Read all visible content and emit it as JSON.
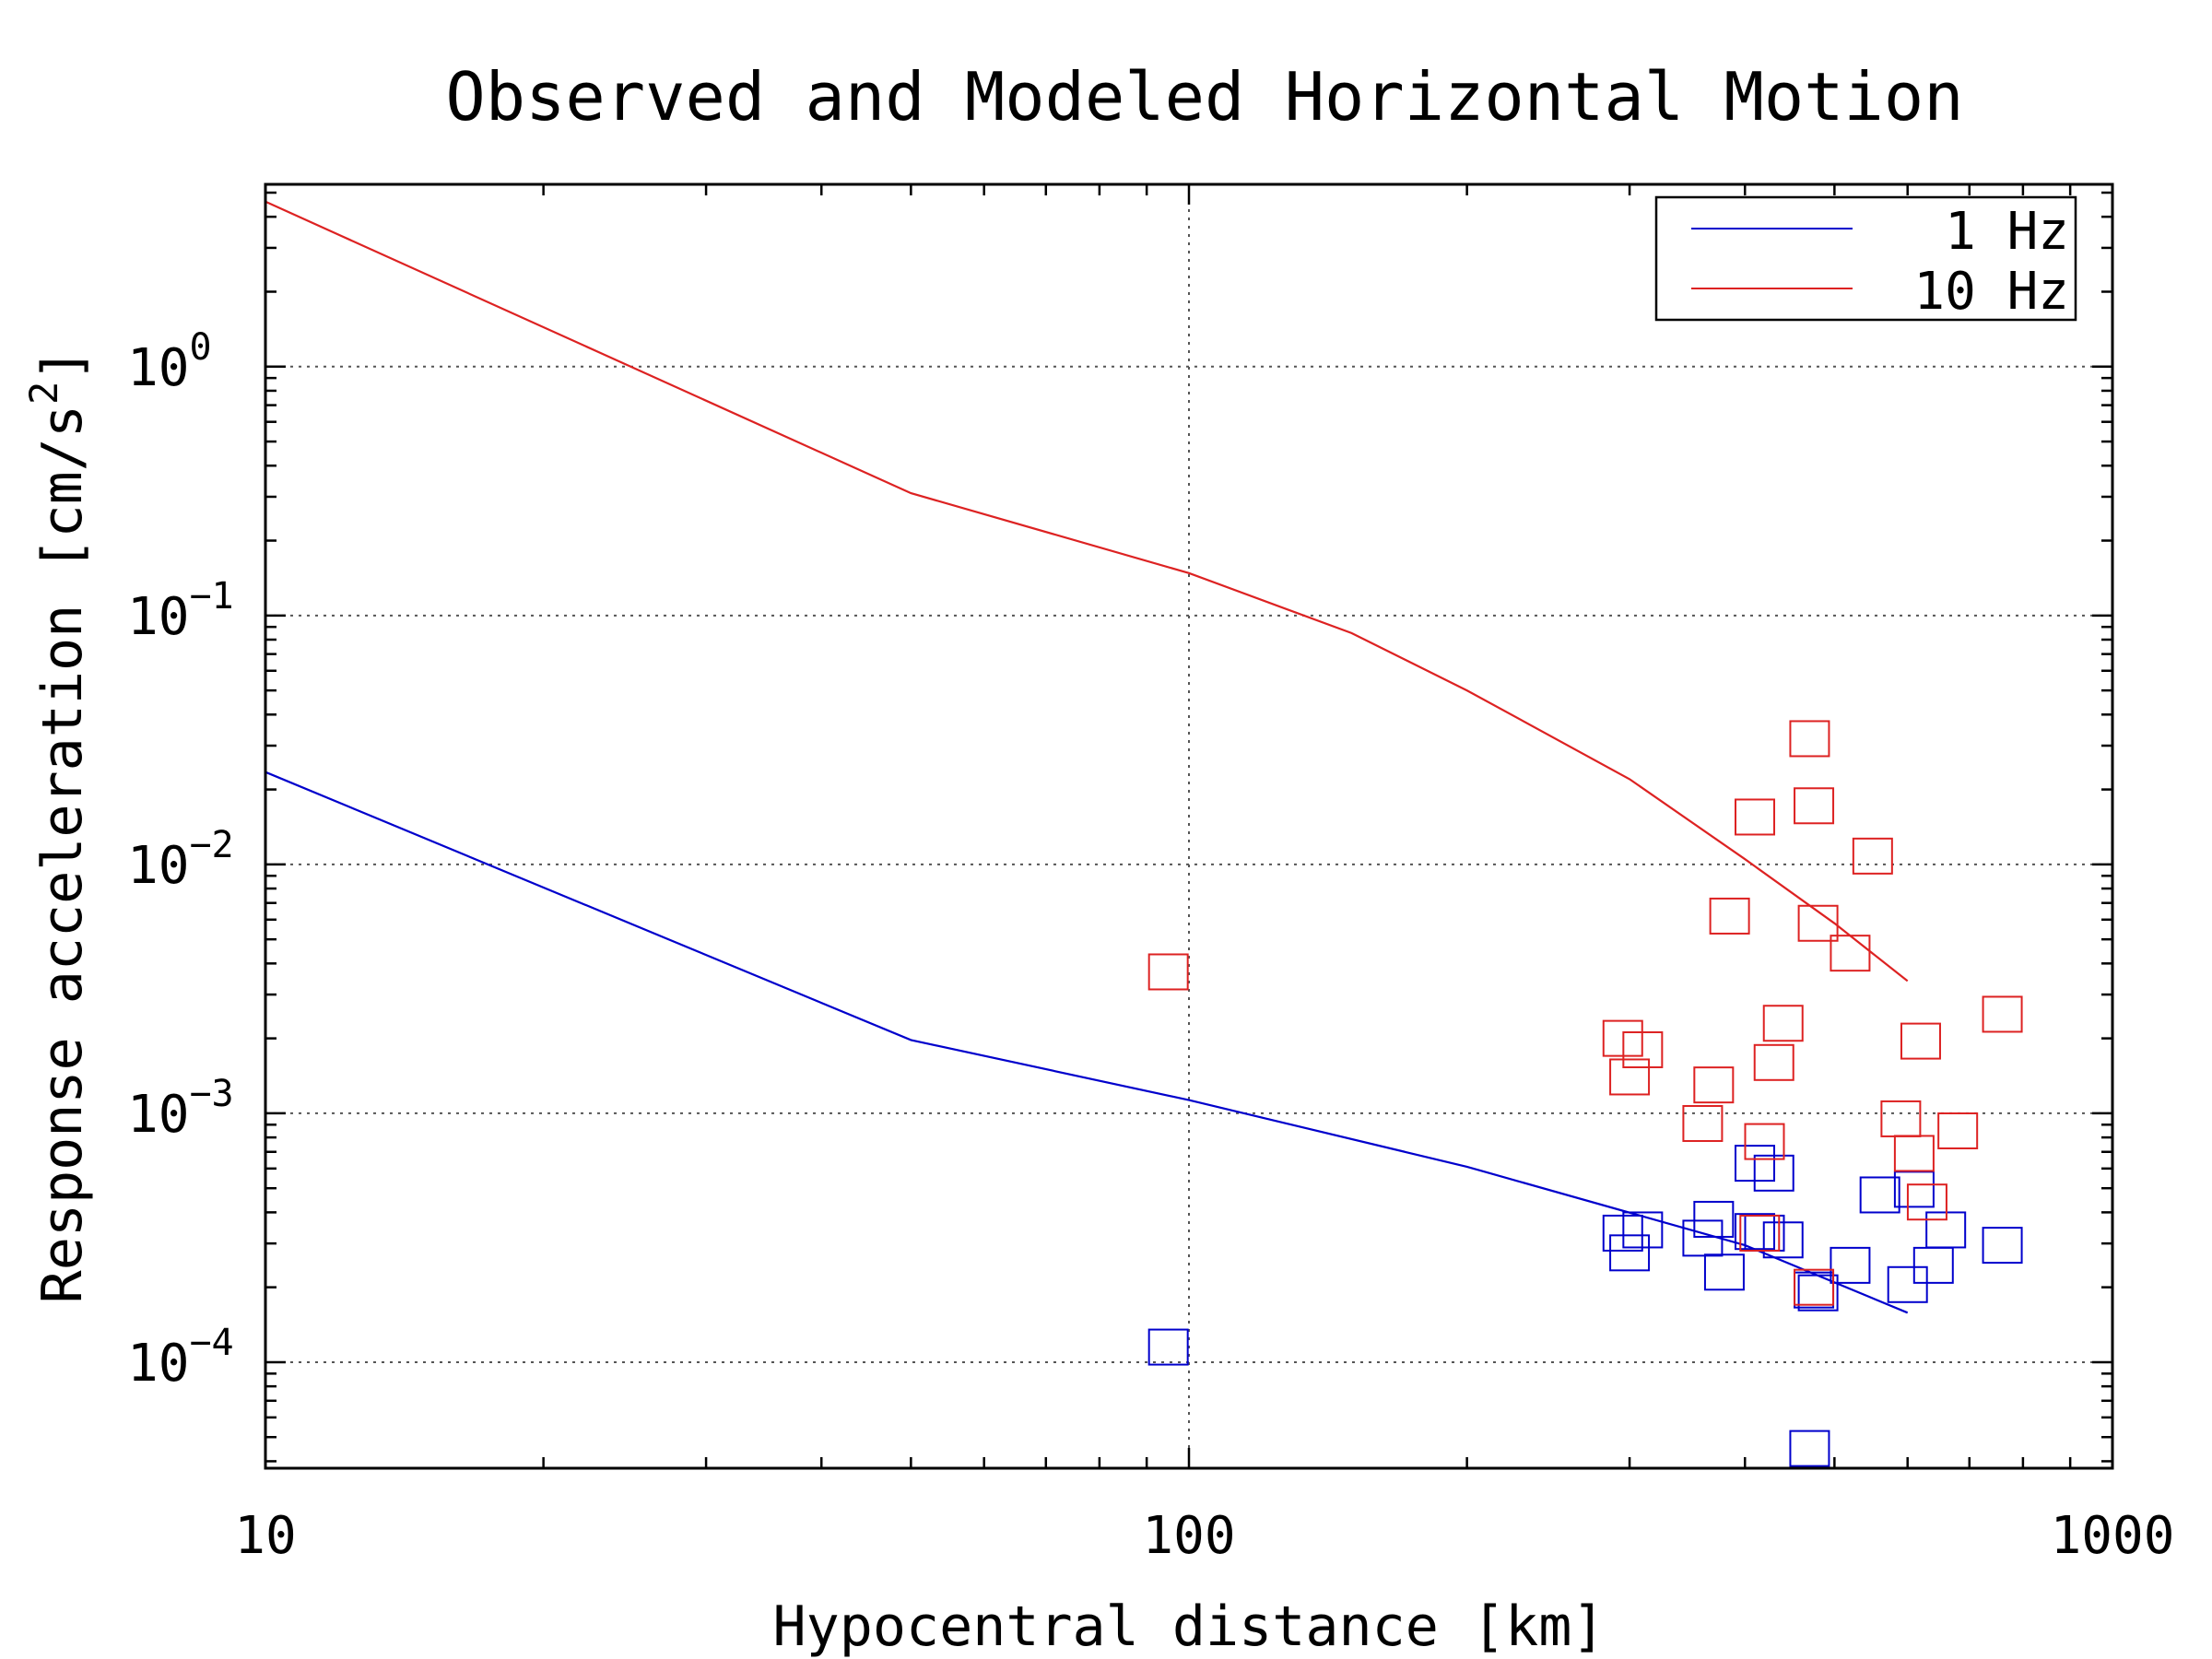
{
  "chart_data": {
    "type": "scatter",
    "title": "Observed and Modeled Horizontal Motion",
    "xlabel": "Hypocentral distance [km]",
    "ylabel": "Response acceleration [cm/s²]",
    "ylabel_main": "Response acceleration [cm/s",
    "ylabel_sup": "2",
    "ylabel_end": "]",
    "xscale": "log",
    "yscale": "log",
    "xlim": [
      10,
      1000
    ],
    "ylim": [
      3.75e-05,
      5.4
    ],
    "x_ticks": [
      {
        "value": 10,
        "label": "10"
      },
      {
        "value": 100,
        "label": "100"
      },
      {
        "value": 1000,
        "label": "1000"
      }
    ],
    "y_ticks": [
      {
        "value": 1,
        "base": "10",
        "exp": "0"
      },
      {
        "value": 0.1,
        "base": "10",
        "exp": "−1"
      },
      {
        "value": 0.01,
        "base": "10",
        "exp": "−2"
      },
      {
        "value": 0.001,
        "base": "10",
        "exp": "−3"
      },
      {
        "value": 0.0001,
        "base": "10",
        "exp": "−4"
      }
    ],
    "grid": true,
    "legend_position": "top-right",
    "series": [
      {
        "name": "1 Hz",
        "color": "#0000cc",
        "line": [
          [
            10,
            0.0235
          ],
          [
            50,
            0.00197
          ],
          [
            100,
            0.00113
          ],
          [
            200,
            0.00061
          ],
          [
            400,
            0.000295
          ],
          [
            600,
            0.000158
          ]
        ],
        "points": [
          [
            95,
            0.000115
          ],
          [
            295,
            0.00033
          ],
          [
            300,
            0.000275
          ],
          [
            310,
            0.00034
          ],
          [
            360,
            0.000315
          ],
          [
            370,
            0.000375
          ],
          [
            380,
            0.00023
          ],
          [
            410,
            0.00063
          ],
          [
            410,
            0.000335
          ],
          [
            420,
            0.00033
          ],
          [
            430,
            0.000575
          ],
          [
            440,
            0.00031
          ],
          [
            470,
            4.5e-05
          ],
          [
            475,
            0.000195
          ],
          [
            480,
            0.00019
          ],
          [
            520,
            0.000245
          ],
          [
            560,
            0.00047
          ],
          [
            600,
            0.000205
          ],
          [
            610,
            0.000495
          ],
          [
            640,
            0.000245
          ],
          [
            660,
            0.00034
          ],
          [
            760,
            0.000295
          ]
        ]
      },
      {
        "name": "10 Hz",
        "color": "#dd2222",
        "line": [
          [
            10,
            4.6
          ],
          [
            50,
            0.31
          ],
          [
            100,
            0.148
          ],
          [
            150,
            0.085
          ],
          [
            200,
            0.05
          ],
          [
            300,
            0.022
          ],
          [
            400,
            0.0105
          ],
          [
            500,
            0.0058
          ],
          [
            600,
            0.0034
          ]
        ],
        "points": [
          [
            95,
            0.0037
          ],
          [
            295,
            0.002
          ],
          [
            300,
            0.0014
          ],
          [
            310,
            0.0018
          ],
          [
            360,
            0.00091
          ],
          [
            370,
            0.0013
          ],
          [
            385,
            0.0062
          ],
          [
            410,
            0.0155
          ],
          [
            420,
            0.00077
          ],
          [
            415,
            0.00033
          ],
          [
            430,
            0.0016
          ],
          [
            440,
            0.0023
          ],
          [
            470,
            0.032
          ],
          [
            475,
            0.0172
          ],
          [
            475,
            0.0002
          ],
          [
            480,
            0.0058
          ],
          [
            520,
            0.0044
          ],
          [
            550,
            0.0108
          ],
          [
            590,
            0.00095
          ],
          [
            610,
            0.00069
          ],
          [
            620,
            0.00195
          ],
          [
            630,
            0.00044
          ],
          [
            680,
            0.00085
          ],
          [
            760,
            0.0025
          ]
        ]
      }
    ]
  }
}
